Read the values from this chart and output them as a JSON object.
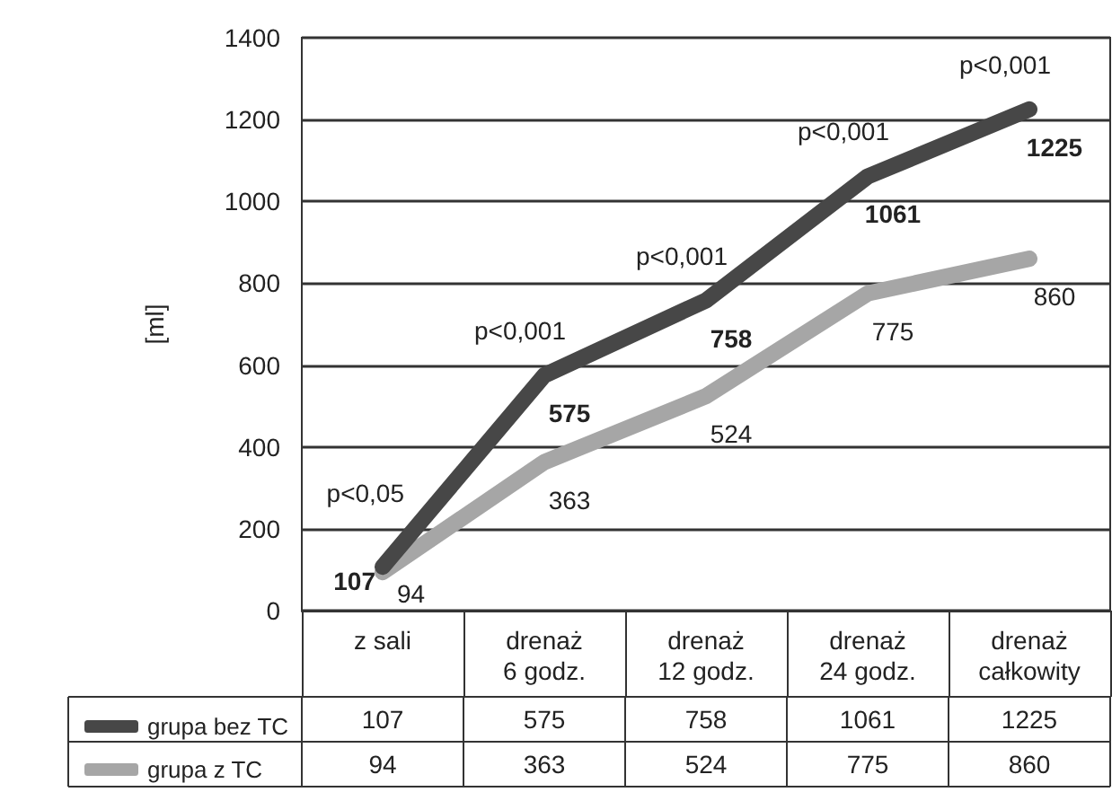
{
  "chart_data": {
    "type": "line",
    "ylabel": "[ml]",
    "categories": [
      "z sali",
      "drenaż 6 godz.",
      "drenaż 12 godz.",
      "drenaż 24 godz.",
      "drenaż całkowity"
    ],
    "series": [
      {
        "name": "grupa bez TC",
        "color": "#474747",
        "values": [
          107,
          575,
          758,
          1061,
          1225
        ],
        "value_labels": [
          "107",
          "575",
          "758",
          "1061",
          "1225"
        ]
      },
      {
        "name": "grupa z TC",
        "color": "#a6a6a6",
        "values": [
          94,
          363,
          524,
          775,
          860
        ],
        "value_labels": [
          "94",
          "363",
          "524",
          "775",
          "860"
        ]
      }
    ],
    "ylim": [
      0,
      1400
    ],
    "yticks": [
      0,
      200,
      400,
      600,
      800,
      1000,
      1200,
      1400
    ],
    "grid": "y",
    "legend": "bottom left",
    "data_labels": true,
    "marker": "none",
    "line_style": "solid",
    "annotations": [
      {
        "text": "p<0,05",
        "x": "z sali",
        "y": 107
      },
      {
        "text": "p<0,001",
        "x": "drenaż 6 godz.",
        "y": 575
      },
      {
        "text": "p<0,001",
        "x": "drenaż 12 godz.",
        "y": 758
      },
      {
        "text": "p<0,001",
        "x": "drenaż 24 godz.",
        "y": 1061
      },
      {
        "text": "p<0,001",
        "x": "drenaż całkowity",
        "y": 1225
      }
    ]
  }
}
